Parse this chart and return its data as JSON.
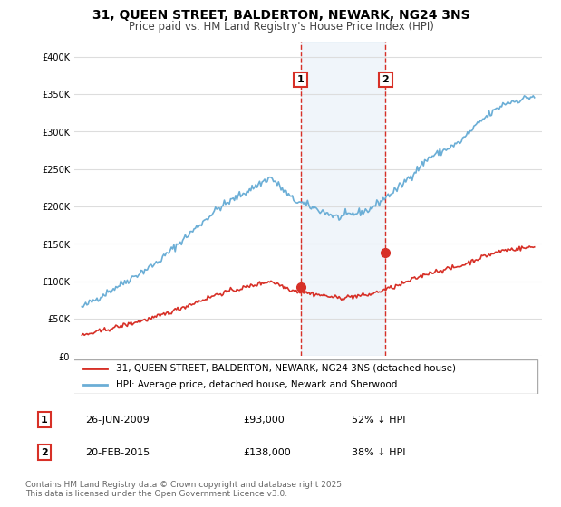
{
  "title_line1": "31, QUEEN STREET, BALDERTON, NEWARK, NG24 3NS",
  "title_line2": "Price paid vs. HM Land Registry's House Price Index (HPI)",
  "legend_label1": "31, QUEEN STREET, BALDERTON, NEWARK, NG24 3NS (detached house)",
  "legend_label2": "HPI: Average price, detached house, Newark and Sherwood",
  "transaction1_label": "1",
  "transaction1_date": "26-JUN-2009",
  "transaction1_price": "£93,000",
  "transaction1_hpi": "52% ↓ HPI",
  "transaction2_label": "2",
  "transaction2_date": "20-FEB-2015",
  "transaction2_price": "£138,000",
  "transaction2_hpi": "38% ↓ HPI",
  "footer": "Contains HM Land Registry data © Crown copyright and database right 2025.\nThis data is licensed under the Open Government Licence v3.0.",
  "hpi_color": "#6baed6",
  "price_color": "#d73027",
  "marker_color": "#d73027",
  "vline_color": "#d73027",
  "shaded_color": "#c6dbef",
  "ylim": [
    0,
    420000
  ],
  "yticks": [
    0,
    50000,
    100000,
    150000,
    200000,
    250000,
    300000,
    350000,
    400000
  ],
  "transaction1_year": 2009.49,
  "transaction1_value": 93000,
  "transaction2_year": 2015.13,
  "transaction2_value": 138000,
  "background_color": "#ffffff"
}
